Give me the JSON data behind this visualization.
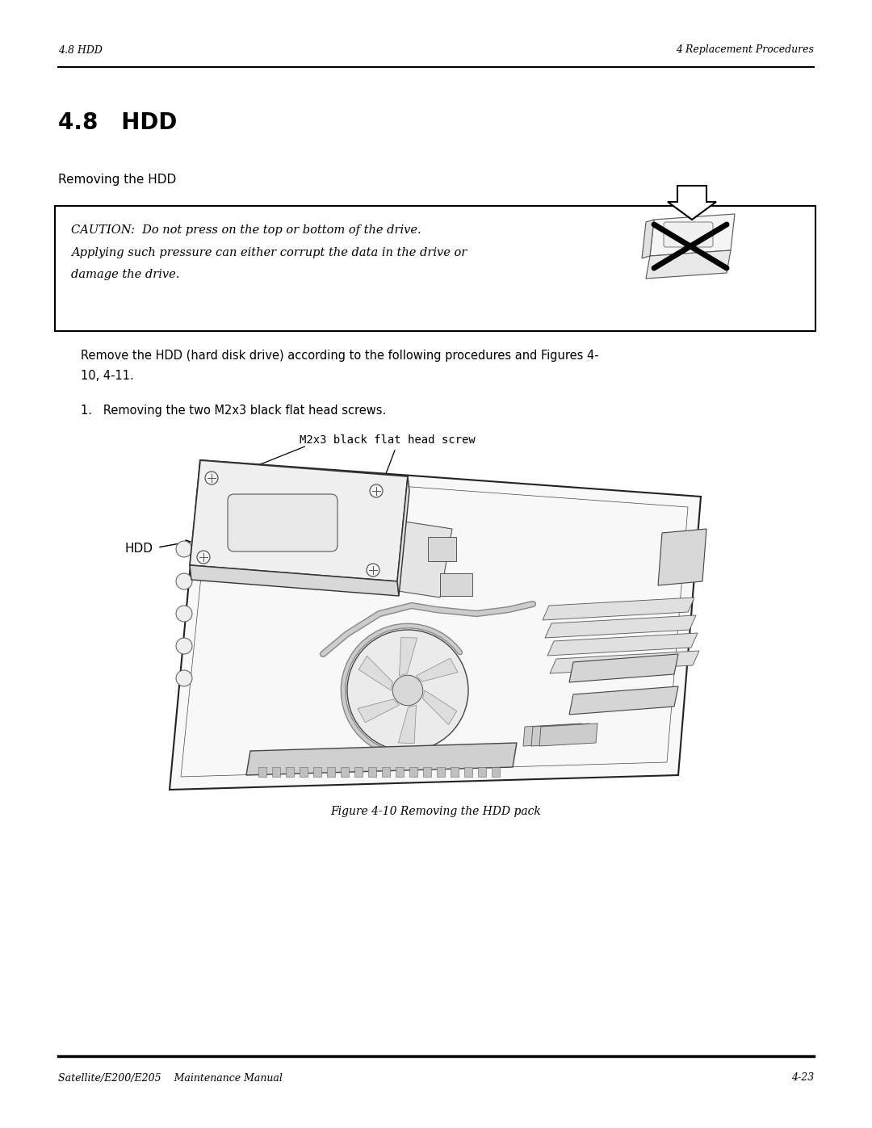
{
  "page_width": 10.8,
  "page_height": 13.97,
  "bg_color": "#ffffff",
  "header_left": "4.8 HDD",
  "header_right": "4 Replacement Procedures",
  "footer_left": "Satellite/E200/E205    Maintenance Manual",
  "footer_right": "4-23",
  "section_title": "4.8   HDD",
  "subsection": "Removing the HDD",
  "caution_line1": "CAUTION:  Do not press on the top or bottom of the drive.",
  "caution_line2": "Applying such pressure can either corrupt the data in the drive or",
  "caution_line3": "damage the drive.",
  "body_line1": "Remove the HDD (hard disk drive) according to the following procedures and Figures 4-",
  "body_line2": "10, 4-11.",
  "step1": "1.   Removing the two M2x3 black flat head screws.",
  "label_screw": "M2x3 black flat head screw",
  "label_hdd": "HDD",
  "fig_caption": "Figure 4-10 Removing the HDD pack",
  "header_fs": 9,
  "section_fs": 20,
  "subsection_fs": 11,
  "body_fs": 10.5,
  "caution_fs": 10.5,
  "step_fs": 10.5,
  "caption_fs": 10,
  "label_fs": 9
}
